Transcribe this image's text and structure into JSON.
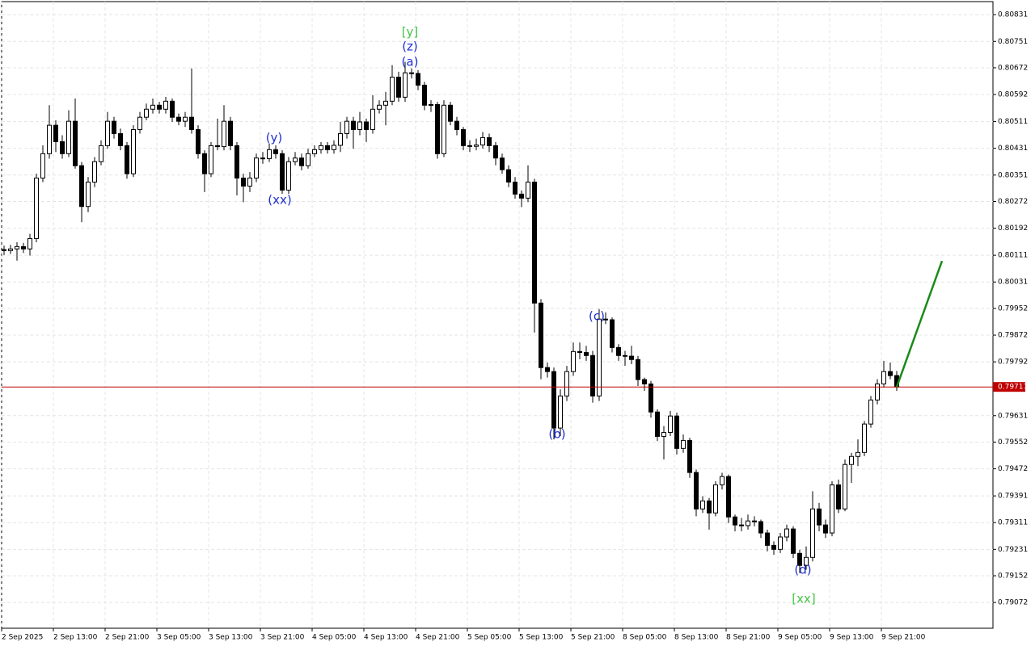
{
  "chart_data": {
    "type": "candlestick",
    "categories": [
      "2 Sep 2025",
      null,
      null,
      null,
      null,
      null,
      null,
      null,
      "2 Sep 13:00",
      null,
      null,
      null,
      null,
      null,
      null,
      null,
      "2 Sep 21:00",
      null,
      null,
      null,
      null,
      null,
      null,
      null,
      "3 Sep 05:00",
      null,
      null,
      null,
      null,
      null,
      null,
      null,
      "3 Sep 13:00",
      null,
      null,
      null,
      null,
      null,
      null,
      null,
      "3 Sep 21:00",
      null,
      null,
      null,
      null,
      null,
      null,
      null,
      "4 Sep 05:00",
      null,
      null,
      null,
      null,
      null,
      null,
      null,
      "4 Sep 13:00",
      null,
      null,
      null,
      null,
      null,
      null,
      null,
      "4 Sep 21:00",
      null,
      null,
      null,
      null,
      null,
      null,
      null,
      "5 Sep 05:00",
      null,
      null,
      null,
      null,
      null,
      null,
      null,
      "5 Sep 13:00",
      null,
      null,
      null,
      null,
      null,
      null,
      null,
      "5 Sep 21:00",
      null,
      null,
      null,
      null,
      null,
      null,
      null,
      "8 Sep 05:00",
      null,
      null,
      null,
      null,
      null,
      null,
      null,
      "8 Sep 13:00",
      null,
      null,
      null,
      null,
      null,
      null,
      null,
      "8 Sep 21:00",
      null,
      null,
      null,
      null,
      null,
      null,
      null,
      "9 Sep 05:00",
      null,
      null,
      null,
      null,
      null,
      null,
      null,
      "9 Sep 13:00",
      null,
      null,
      null,
      null,
      null,
      null,
      null,
      "9 Sep 21:00",
      null,
      null
    ],
    "open": [
      0.80128,
      0.80125,
      0.8013,
      0.80137,
      0.8013,
      0.80161,
      0.80342,
      0.80415,
      0.805,
      0.80451,
      0.80415,
      0.80512,
      0.80379,
      0.80257,
      0.8033,
      0.80391,
      0.80439,
      0.80512,
      0.80475,
      0.80439,
      0.80355,
      0.80487,
      0.80524,
      0.80548,
      0.8056,
      0.80548,
      0.80572,
      0.80524,
      0.80512,
      0.80524,
      0.80487,
      0.80415,
      0.80355,
      0.80439,
      0.80436,
      0.80512,
      0.80439,
      0.80342,
      0.80318,
      0.80342,
      0.80402,
      0.804,
      0.80427,
      0.80415,
      0.80306,
      0.80391,
      0.80402,
      0.80379,
      0.80415,
      0.80427,
      0.80439,
      0.80427,
      0.8044,
      0.80475,
      0.80512,
      0.80487,
      0.8051,
      0.80487,
      0.80548,
      0.8056,
      0.80572,
      0.80644,
      0.80584,
      0.80657,
      0.80655,
      0.8062,
      0.8056,
      0.80562,
      0.80415,
      0.8056,
      0.80512,
      0.80487,
      0.80439,
      0.80437,
      0.80441,
      0.80463,
      0.80439,
      0.80402,
      0.80367,
      0.8033,
      0.80294,
      0.80282,
      0.8033,
      0.79968,
      0.79775,
      0.79763,
      0.79594,
      0.7969,
      0.79763,
      0.79823,
      0.7982,
      0.79811,
      0.7969,
      0.7992,
      0.79918,
      0.79835,
      0.79811,
      0.79809,
      0.79799,
      0.79739,
      0.79726,
      0.79642,
      0.79569,
      0.79581,
      0.7963,
      0.79533,
      0.79557,
      0.79461,
      0.79352,
      0.79376,
      0.7934,
      0.79424,
      0.79449,
      0.79328,
      0.79304,
      0.79302,
      0.79316,
      0.79314,
      0.7928,
      0.79243,
      0.79231,
      0.79268,
      0.79292,
      0.79219,
      0.79183,
      0.79207,
      0.79352,
      0.79304,
      0.7928,
      0.79424,
      0.79352,
      0.79485,
      0.79509,
      0.79521,
      0.79606,
      0.79678,
      0.79726,
      0.79763,
      0.79751
    ],
    "high": [
      0.8014,
      0.80142,
      0.8015,
      0.80148,
      0.80175,
      0.80355,
      0.8044,
      0.8056,
      0.80515,
      0.8047,
      0.80545,
      0.8058,
      0.8039,
      0.80345,
      0.80405,
      0.80455,
      0.8054,
      0.80525,
      0.8049,
      0.8045,
      0.805,
      0.8054,
      0.80565,
      0.8058,
      0.8057,
      0.80585,
      0.8058,
      0.80535,
      0.8054,
      0.8067,
      0.805,
      0.80425,
      0.8045,
      0.8052,
      0.8056,
      0.80525,
      0.8045,
      0.80355,
      0.8036,
      0.80415,
      0.8042,
      0.80445,
      0.8044,
      0.80425,
      0.80405,
      0.8042,
      0.80415,
      0.8043,
      0.8044,
      0.8045,
      0.8045,
      0.80455,
      0.8051,
      0.80525,
      0.80525,
      0.8054,
      0.8052,
      0.8059,
      0.80575,
      0.806,
      0.8068,
      0.8066,
      0.8069,
      0.8067,
      0.80665,
      0.8063,
      0.80575,
      0.8057,
      0.80575,
      0.8057,
      0.80525,
      0.80495,
      0.80455,
      0.8046,
      0.8048,
      0.80475,
      0.8045,
      0.80415,
      0.8038,
      0.80345,
      0.80305,
      0.8038,
      0.8034,
      0.7998,
      0.7979,
      0.79775,
      0.7971,
      0.7978,
      0.7985,
      0.7985,
      0.7984,
      0.79825,
      0.7995,
      0.7994,
      0.79925,
      0.79845,
      0.79825,
      0.7984,
      0.7981,
      0.79745,
      0.79735,
      0.7965,
      0.796,
      0.79645,
      0.7964,
      0.79575,
      0.79565,
      0.7947,
      0.7939,
      0.79385,
      0.79435,
      0.7946,
      0.79455,
      0.79335,
      0.79325,
      0.79335,
      0.7933,
      0.7932,
      0.7929,
      0.79255,
      0.7928,
      0.79305,
      0.793,
      0.7923,
      0.7924,
      0.79405,
      0.7937,
      0.7932,
      0.79435,
      0.7944,
      0.795,
      0.7952,
      0.7956,
      0.79615,
      0.7969,
      0.7974,
      0.79795,
      0.7979,
      0.79765
    ],
    "low": [
      0.80112,
      0.80115,
      0.80095,
      0.80118,
      0.8011,
      0.8015,
      0.8033,
      0.804,
      0.8042,
      0.804,
      0.80405,
      0.8037,
      0.8021,
      0.8024,
      0.80315,
      0.8038,
      0.8043,
      0.8046,
      0.80425,
      0.8034,
      0.80345,
      0.80475,
      0.80515,
      0.80535,
      0.80535,
      0.80535,
      0.8051,
      0.805,
      0.80495,
      0.80475,
      0.804,
      0.803,
      0.80345,
      0.80425,
      0.80425,
      0.80425,
      0.8029,
      0.8027,
      0.803,
      0.8033,
      0.80385,
      0.8039,
      0.804,
      0.80295,
      0.80295,
      0.8038,
      0.80365,
      0.8037,
      0.80405,
      0.80415,
      0.80415,
      0.80415,
      0.8042,
      0.8046,
      0.8043,
      0.8047,
      0.8045,
      0.80475,
      0.80535,
      0.805,
      0.8056,
      0.8057,
      0.8057,
      0.8064,
      0.80605,
      0.80545,
      0.8054,
      0.804,
      0.80405,
      0.805,
      0.8047,
      0.80425,
      0.8042,
      0.80425,
      0.8043,
      0.8042,
      0.8038,
      0.80355,
      0.80315,
      0.8028,
      0.80255,
      0.8027,
      0.7988,
      0.7974,
      0.79745,
      0.7956,
      0.7957,
      0.79675,
      0.7975,
      0.798,
      0.79795,
      0.7967,
      0.79675,
      0.79905,
      0.7982,
      0.79795,
      0.7978,
      0.79785,
      0.7972,
      0.79705,
      0.79625,
      0.79555,
      0.795,
      0.7957,
      0.79515,
      0.7952,
      0.79445,
      0.7933,
      0.7934,
      0.7929,
      0.7933,
      0.7941,
      0.7931,
      0.79285,
      0.79285,
      0.7929,
      0.793,
      0.79265,
      0.79225,
      0.79215,
      0.7922,
      0.79255,
      0.79205,
      0.7916,
      0.7917,
      0.79195,
      0.79285,
      0.79265,
      0.7927,
      0.7934,
      0.79345,
      0.7943,
      0.7948,
      0.7951,
      0.79595,
      0.79665,
      0.79715,
      0.7974,
      0.79705
    ],
    "close": [
      0.80125,
      0.8013,
      0.80137,
      0.8013,
      0.80161,
      0.80342,
      0.80415,
      0.805,
      0.80451,
      0.80415,
      0.80512,
      0.80379,
      0.80257,
      0.8033,
      0.80391,
      0.80439,
      0.80512,
      0.80475,
      0.80439,
      0.80355,
      0.80487,
      0.80524,
      0.80548,
      0.8056,
      0.80548,
      0.80572,
      0.80524,
      0.80512,
      0.80524,
      0.80487,
      0.80415,
      0.80355,
      0.80439,
      0.80436,
      0.80512,
      0.80439,
      0.80342,
      0.80318,
      0.80342,
      0.80402,
      0.804,
      0.80427,
      0.80415,
      0.80306,
      0.80391,
      0.80402,
      0.80379,
      0.80415,
      0.80427,
      0.80439,
      0.80427,
      0.8044,
      0.80475,
      0.80512,
      0.80487,
      0.8051,
      0.80487,
      0.80548,
      0.8056,
      0.80572,
      0.80644,
      0.80584,
      0.80657,
      0.80655,
      0.8062,
      0.8056,
      0.80562,
      0.80415,
      0.8056,
      0.80512,
      0.80487,
      0.80439,
      0.80437,
      0.80441,
      0.80463,
      0.80439,
      0.80402,
      0.80367,
      0.8033,
      0.80294,
      0.80282,
      0.8033,
      0.79968,
      0.79775,
      0.79763,
      0.79594,
      0.7969,
      0.79763,
      0.79823,
      0.7982,
      0.79811,
      0.7969,
      0.7992,
      0.79918,
      0.79835,
      0.79811,
      0.79809,
      0.79799,
      0.79739,
      0.79726,
      0.79642,
      0.79569,
      0.79581,
      0.7963,
      0.79533,
      0.79557,
      0.79461,
      0.79352,
      0.79376,
      0.7934,
      0.79424,
      0.79449,
      0.79328,
      0.79304,
      0.79302,
      0.79316,
      0.79314,
      0.7928,
      0.79243,
      0.79231,
      0.79268,
      0.79292,
      0.79219,
      0.79183,
      0.79207,
      0.79352,
      0.79304,
      0.7928,
      0.79424,
      0.79352,
      0.79485,
      0.79509,
      0.79521,
      0.79606,
      0.79678,
      0.79726,
      0.79763,
      0.79751,
      0.79717
    ],
    "up_color": "#ffffff",
    "down_color": "#000000",
    "ylim": [
      0.78995,
      0.8087
    ],
    "yticks": [
      0.80831,
      0.80751,
      0.80672,
      0.80592,
      0.80511,
      0.80431,
      0.80351,
      0.80272,
      0.80192,
      0.80111,
      0.80031,
      0.79952,
      0.79872,
      0.79792,
      0.79631,
      0.79552,
      0.79472,
      0.79391,
      0.79311,
      0.79231,
      0.79152,
      0.79072
    ],
    "grid": true,
    "current_price": 0.79717,
    "current_price_color": "#c00000",
    "forecast": {
      "x": [
        138,
        145
      ],
      "values": [
        0.79717,
        0.80094
      ],
      "color": "#1a8a1a"
    },
    "annotations": [
      {
        "text": "[y]",
        "color": "#44c444"
      },
      {
        "text": "(z)",
        "color": "#1f2fd0"
      },
      {
        "text": "(a)",
        "color": "#1f2fd0"
      },
      {
        "text": "(y)",
        "color": "#1f2fd0"
      },
      {
        "text": "(xx)",
        "color": "#1f2fd0"
      },
      {
        "text": "(b)",
        "color": "#1f2fd0"
      },
      {
        "text": "(c)",
        "color": "#1f2fd0"
      },
      {
        "text": "(d)",
        "color": "#1f2fd0"
      },
      {
        "text": "[xx]",
        "color": "#44c444"
      }
    ]
  }
}
